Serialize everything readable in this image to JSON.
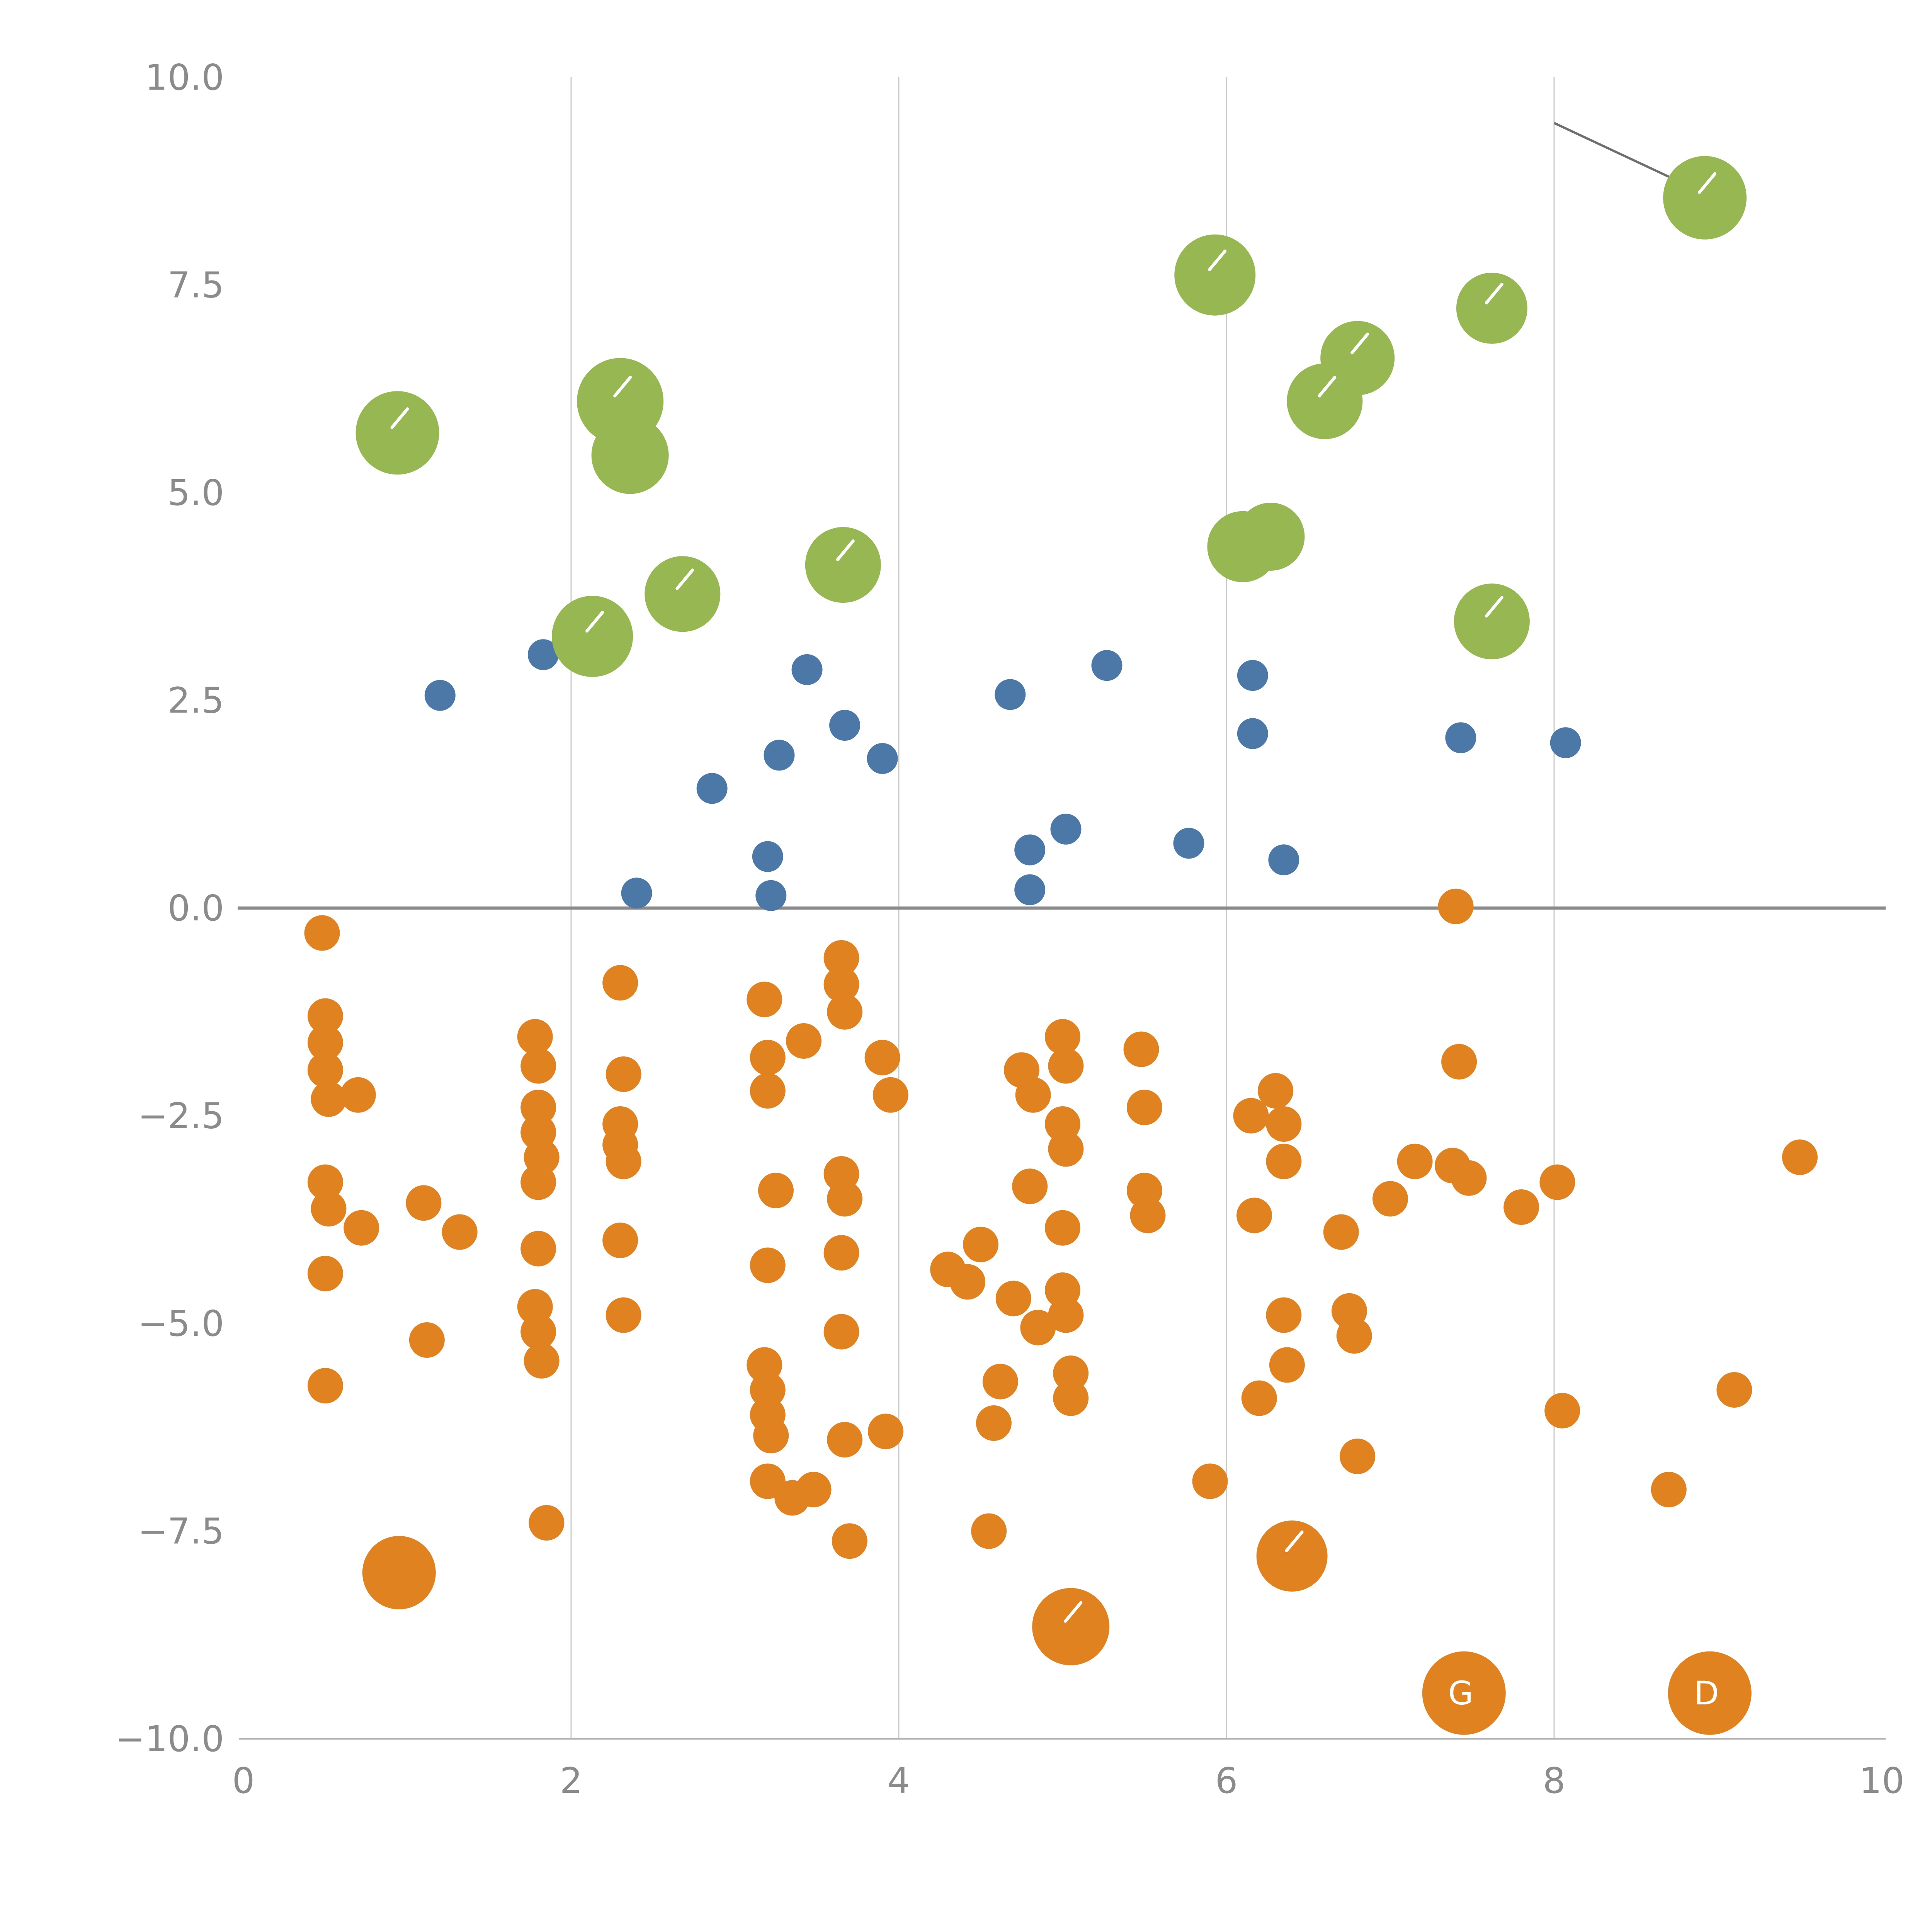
{
  "chart_data": {
    "type": "scatter",
    "title": "",
    "xlabel": "",
    "ylabel": "",
    "xlim": [
      0,
      10
    ],
    "ylim": [
      -10,
      10
    ],
    "x_ticks": [
      0,
      2,
      4,
      6,
      8,
      10
    ],
    "x_tick_labels": [
      "0",
      "2",
      "4",
      "6",
      "8",
      "10"
    ],
    "y_ticks": [
      10,
      7.5,
      5,
      2.5,
      0,
      -2.5,
      -5,
      -7.5,
      -10
    ],
    "y_tick_labels": [
      "10.0",
      "7.5",
      "5.0",
      "2.5",
      "0.0",
      "−2.5",
      "−5.0",
      "−7.5",
      "−10.0"
    ],
    "grid_x": [
      2,
      4,
      6,
      8
    ],
    "grid_color": "#c9c9c9",
    "axis_spine_color": "#b3b3b3",
    "tick_label_color": "#8b8b8b",
    "legend": "none",
    "zero_line": {
      "y": 0,
      "color": "#8a8a8a"
    },
    "annotation_line": {
      "x1": 8.0,
      "y1": 9.45,
      "x2": 8.92,
      "y2": 8.6,
      "color": "#6f6f6f"
    },
    "series": [
      {
        "name": "orange",
        "color": "#e0821f",
        "default_radius": 46,
        "points": [
          [
            0.48,
            -0.3
          ],
          [
            0.5,
            -1.3
          ],
          [
            0.5,
            -1.62
          ],
          [
            0.5,
            -1.95
          ],
          [
            0.52,
            -2.3
          ],
          [
            0.5,
            -3.3
          ],
          [
            0.52,
            -3.62
          ],
          [
            0.5,
            -4.4
          ],
          [
            0.5,
            -5.75
          ],
          [
            0.7,
            -2.25
          ],
          [
            0.72,
            -3.85
          ],
          [
            0.95,
            -8.0,
            95
          ],
          [
            1.1,
            -3.55
          ],
          [
            1.12,
            -5.2
          ],
          [
            1.32,
            -3.9
          ],
          [
            1.78,
            -1.55
          ],
          [
            1.8,
            -1.9
          ],
          [
            1.8,
            -2.4
          ],
          [
            1.8,
            -2.7
          ],
          [
            1.82,
            -3.0
          ],
          [
            1.8,
            -3.3
          ],
          [
            1.8,
            -4.1
          ],
          [
            1.78,
            -4.8
          ],
          [
            1.8,
            -5.1
          ],
          [
            1.82,
            -5.45
          ],
          [
            1.85,
            -7.4
          ],
          [
            2.3,
            -0.9
          ],
          [
            2.32,
            -2.0
          ],
          [
            2.3,
            -2.6
          ],
          [
            2.3,
            -2.85
          ],
          [
            2.32,
            -3.05
          ],
          [
            2.3,
            -4.0
          ],
          [
            2.32,
            -4.9
          ],
          [
            3.18,
            -1.1
          ],
          [
            3.2,
            -1.8
          ],
          [
            3.2,
            -2.2
          ],
          [
            3.25,
            -3.4
          ],
          [
            3.2,
            -4.3
          ],
          [
            3.18,
            -5.5
          ],
          [
            3.2,
            -5.8
          ],
          [
            3.2,
            -6.1
          ],
          [
            3.22,
            -6.35
          ],
          [
            3.2,
            -6.9
          ],
          [
            3.35,
            -7.1
          ],
          [
            3.42,
            -1.6
          ],
          [
            3.48,
            -7.0
          ],
          [
            3.65,
            -0.6
          ],
          [
            3.65,
            -0.92
          ],
          [
            3.67,
            -1.25
          ],
          [
            3.65,
            -3.2
          ],
          [
            3.67,
            -3.5
          ],
          [
            3.65,
            -4.15
          ],
          [
            3.65,
            -5.1
          ],
          [
            3.67,
            -6.4
          ],
          [
            3.7,
            -7.62
          ],
          [
            3.9,
            -1.8
          ],
          [
            3.95,
            -2.25
          ],
          [
            3.92,
            -6.3
          ],
          [
            4.3,
            -4.35
          ],
          [
            4.42,
            -4.5
          ],
          [
            4.5,
            -4.05
          ],
          [
            4.55,
            -7.5
          ],
          [
            4.58,
            -6.2
          ],
          [
            4.62,
            -5.7
          ],
          [
            4.7,
            -4.7
          ],
          [
            4.75,
            -1.95
          ],
          [
            4.82,
            -2.25
          ],
          [
            4.8,
            -3.35
          ],
          [
            4.85,
            -5.05
          ],
          [
            5.0,
            -1.55
          ],
          [
            5.02,
            -1.9
          ],
          [
            5.0,
            -2.6
          ],
          [
            5.02,
            -2.9
          ],
          [
            5.0,
            -3.85
          ],
          [
            5.0,
            -4.6
          ],
          [
            5.02,
            -4.9
          ],
          [
            5.05,
            -5.6
          ],
          [
            5.05,
            -5.9
          ],
          [
            5.05,
            -8.65,
            100
          ],
          [
            5.48,
            -1.7
          ],
          [
            5.5,
            -2.4
          ],
          [
            5.5,
            -3.4
          ],
          [
            5.52,
            -3.7
          ],
          [
            5.9,
            -6.9
          ],
          [
            6.15,
            -2.5
          ],
          [
            6.17,
            -3.7
          ],
          [
            6.2,
            -5.9
          ],
          [
            6.3,
            -2.2
          ],
          [
            6.35,
            -2.6
          ],
          [
            6.35,
            -3.05
          ],
          [
            6.35,
            -4.9
          ],
          [
            6.37,
            -5.5
          ],
          [
            6.4,
            -7.8,
            92
          ],
          [
            6.7,
            -3.9
          ],
          [
            6.75,
            -4.85
          ],
          [
            6.78,
            -5.15
          ],
          [
            6.8,
            -6.6
          ],
          [
            7.0,
            -3.5
          ],
          [
            7.15,
            -3.05
          ],
          [
            7.4,
            0.02
          ],
          [
            7.42,
            -1.85
          ],
          [
            7.38,
            -3.1
          ],
          [
            7.48,
            -3.25
          ],
          [
            7.45,
            -9.45,
            108
          ],
          [
            7.8,
            -3.6
          ],
          [
            8.02,
            -3.3
          ],
          [
            8.05,
            -6.05
          ],
          [
            8.7,
            -7.0
          ],
          [
            8.95,
            -9.45,
            108
          ],
          [
            9.1,
            -5.8
          ],
          [
            9.5,
            -3.0
          ]
        ]
      },
      {
        "name": "blue",
        "color": "#4c78a8",
        "default_radius": 40,
        "points": [
          [
            1.2,
            2.56
          ],
          [
            1.83,
            3.05
          ],
          [
            2.4,
            0.18
          ],
          [
            2.86,
            1.44
          ],
          [
            3.2,
            0.62
          ],
          [
            3.22,
            0.15
          ],
          [
            3.27,
            1.84
          ],
          [
            3.44,
            2.87
          ],
          [
            3.67,
            2.2
          ],
          [
            3.9,
            1.8
          ],
          [
            4.68,
            2.57
          ],
          [
            4.8,
            0.7
          ],
          [
            4.8,
            0.22
          ],
          [
            5.02,
            0.95
          ],
          [
            5.27,
            2.92
          ],
          [
            5.77,
            0.78
          ],
          [
            6.16,
            2.8
          ],
          [
            6.16,
            2.1
          ],
          [
            6.35,
            0.58
          ],
          [
            7.43,
            2.05
          ],
          [
            8.07,
            1.99
          ]
        ]
      },
      {
        "name": "green",
        "color": "#96b752",
        "default_radius": 104,
        "points": [
          [
            0.94,
            5.72,
            108
          ],
          [
            2.13,
            3.27,
            105
          ],
          [
            2.3,
            6.1,
            112
          ],
          [
            2.36,
            5.45,
            100
          ],
          [
            2.68,
            3.78,
            98
          ],
          [
            3.66,
            4.13,
            98
          ],
          [
            5.93,
            7.62,
            105
          ],
          [
            6.1,
            4.35,
            92
          ],
          [
            6.27,
            4.47,
            88
          ],
          [
            6.6,
            6.1,
            98
          ],
          [
            6.8,
            6.62,
            96
          ],
          [
            7.62,
            7.22,
            92
          ],
          [
            7.62,
            3.45,
            98
          ],
          [
            8.92,
            8.55,
            108
          ]
        ]
      }
    ],
    "point_labels": [
      {
        "x": 7.43,
        "y": -9.45,
        "text": "G",
        "color": "#ffffff"
      },
      {
        "x": 8.93,
        "y": -9.45,
        "text": "D",
        "color": "#ffffff"
      }
    ],
    "slash_marks": [
      [
        0.94,
        5.72
      ],
      [
        2.13,
        3.27
      ],
      [
        2.3,
        6.1
      ],
      [
        2.68,
        3.78
      ],
      [
        3.66,
        4.13
      ],
      [
        5.93,
        7.62
      ],
      [
        6.6,
        6.1
      ],
      [
        6.8,
        6.62
      ],
      [
        7.62,
        7.22
      ],
      [
        7.62,
        3.45
      ],
      [
        8.92,
        8.55
      ],
      [
        5.05,
        -8.65
      ],
      [
        6.4,
        -7.8
      ]
    ],
    "white_dashes": [
      [
        2.02,
        -8.62
      ],
      [
        8.05,
        9.85
      ]
    ]
  }
}
